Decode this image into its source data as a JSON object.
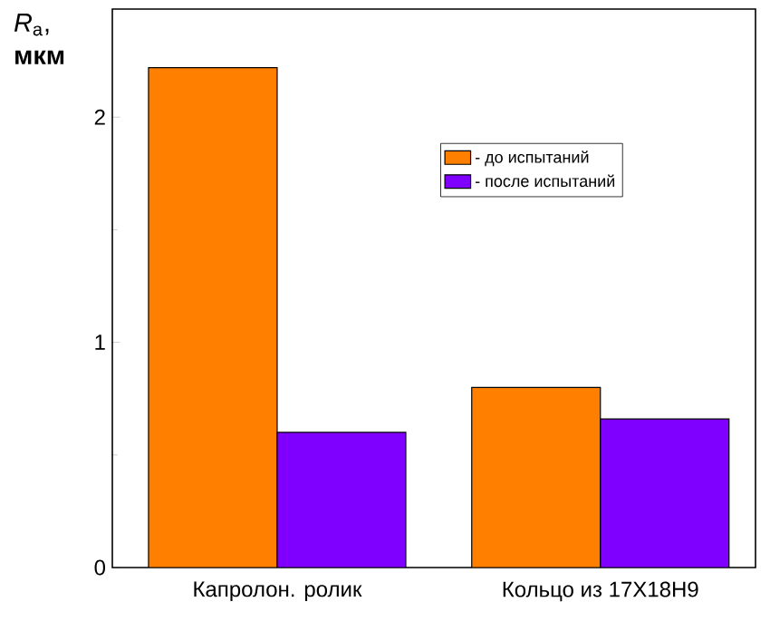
{
  "chart_data": {
    "type": "bar",
    "ylabel": "*R*$_{a}$, **мкм**",
    "categories": [
      "Капролон. ролик",
      "Кольцо из 17Х18Н9"
    ],
    "series": [
      {
        "name": "- до испытаний",
        "color": "#ff8000",
        "values": [
          2.22,
          0.8
        ]
      },
      {
        "name": "- после испытаний",
        "color": "#8000ff",
        "values": [
          0.6,
          0.66
        ]
      }
    ],
    "ylim": [
      0,
      2.48
    ],
    "yticks": [
      0,
      1,
      2
    ],
    "grid": false,
    "legend": "right"
  }
}
